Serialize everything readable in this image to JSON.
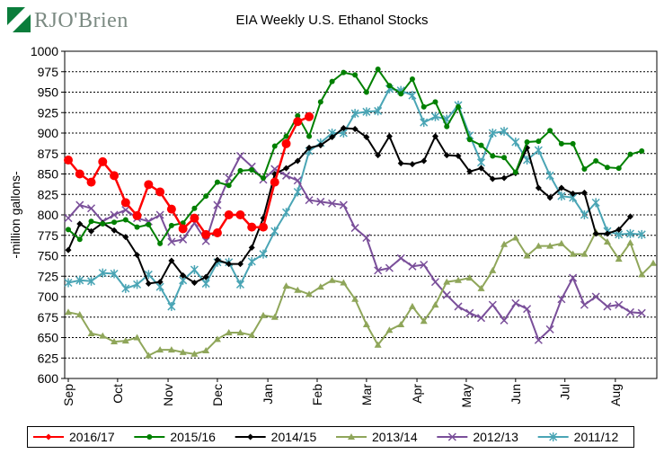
{
  "logo": {
    "brand": "RJO'Brien"
  },
  "chart_data": {
    "type": "line",
    "title": "EIA Weekly U.S. Ethanol Stocks",
    "ylabel": "-million gallons-",
    "xlabel": "",
    "ylim": [
      600,
      1000
    ],
    "yticks": [
      600,
      625,
      650,
      675,
      700,
      725,
      750,
      775,
      800,
      825,
      850,
      875,
      900,
      925,
      950,
      975,
      1000
    ],
    "xticks": [
      "Sep",
      "Oct",
      "Nov",
      "Dec",
      "Jan",
      "Feb",
      "Mar",
      "Apr",
      "May",
      "Jun",
      "Jul",
      "Aug"
    ],
    "x_index": "week of marketing year (0 = first week of Sep)",
    "grid": "horizontal",
    "legend_position": "bottom",
    "series": [
      {
        "name": "2016/17",
        "color": "#ff0000",
        "marker": "circle",
        "values": [
          867,
          850,
          840,
          865,
          848,
          815,
          799,
          837,
          828,
          807,
          783,
          796,
          776,
          778,
          800,
          800,
          785,
          785,
          840,
          887,
          914,
          920
        ]
      },
      {
        "name": "2015/16",
        "color": "#008000",
        "marker": "dot",
        "values": [
          782,
          770,
          792,
          789,
          791,
          794,
          785,
          788,
          765,
          787,
          790,
          808,
          823,
          840,
          836,
          854,
          855,
          845,
          884,
          896,
          921,
          896,
          938,
          963,
          974,
          971,
          950,
          978,
          958,
          948,
          966,
          932,
          938,
          908,
          932,
          892,
          885,
          872,
          870,
          852,
          889,
          890,
          903,
          887,
          887,
          856,
          866,
          858,
          857,
          874,
          878
        ]
      },
      {
        "name": "2014/15",
        "color": "#000000",
        "marker": "diamond",
        "values": [
          757,
          789,
          780,
          790,
          781,
          773,
          751,
          716,
          718,
          744,
          726,
          717,
          724,
          745,
          740,
          740,
          760,
          796,
          850,
          857,
          866,
          882,
          885,
          895,
          906,
          905,
          895,
          873,
          896,
          863,
          862,
          866,
          896,
          873,
          872,
          853,
          857,
          844,
          845,
          851,
          882,
          833,
          821,
          833,
          826,
          827,
          777,
          777,
          782,
          798
        ]
      },
      {
        "name": "2013/14",
        "color": "#8fa65a",
        "marker": "triangle",
        "values": [
          681,
          678,
          655,
          652,
          645,
          646,
          650,
          628,
          635,
          635,
          632,
          630,
          634,
          648,
          656,
          656,
          653,
          677,
          675,
          713,
          708,
          703,
          712,
          720,
          717,
          697,
          666,
          641,
          659,
          666,
          688,
          670,
          690,
          718,
          720,
          723,
          710,
          732,
          764,
          772,
          750,
          762,
          762,
          765,
          752,
          752,
          779,
          767,
          746,
          766,
          727,
          741
        ]
      },
      {
        "name": "2012/13",
        "color": "#7a4f9a",
        "marker": "x",
        "values": [
          796,
          812,
          808,
          792,
          800,
          806,
          796,
          792,
          800,
          767,
          770,
          790,
          768,
          812,
          845,
          872,
          859,
          843,
          856,
          848,
          842,
          818,
          816,
          814,
          812,
          784,
          772,
          732,
          735,
          747,
          737,
          739,
          718,
          702,
          688,
          680,
          674,
          690,
          671,
          692,
          685,
          647,
          660,
          697,
          723,
          690,
          700,
          688,
          690,
          681,
          680
        ]
      },
      {
        "name": "2011/12",
        "color": "#4aa5b5",
        "marker": "asterisk",
        "values": [
          717,
          720,
          719,
          729,
          728,
          710,
          715,
          727,
          712,
          688,
          720,
          733,
          716,
          742,
          742,
          715,
          743,
          752,
          780,
          803,
          828,
          878,
          888,
          900,
          900,
          924,
          926,
          927,
          954,
          952,
          946,
          913,
          920,
          917,
          934,
          897,
          864,
          900,
          902,
          889,
          867,
          879,
          848,
          823,
          821,
          800,
          815,
          780,
          776,
          777,
          776
        ]
      }
    ]
  }
}
